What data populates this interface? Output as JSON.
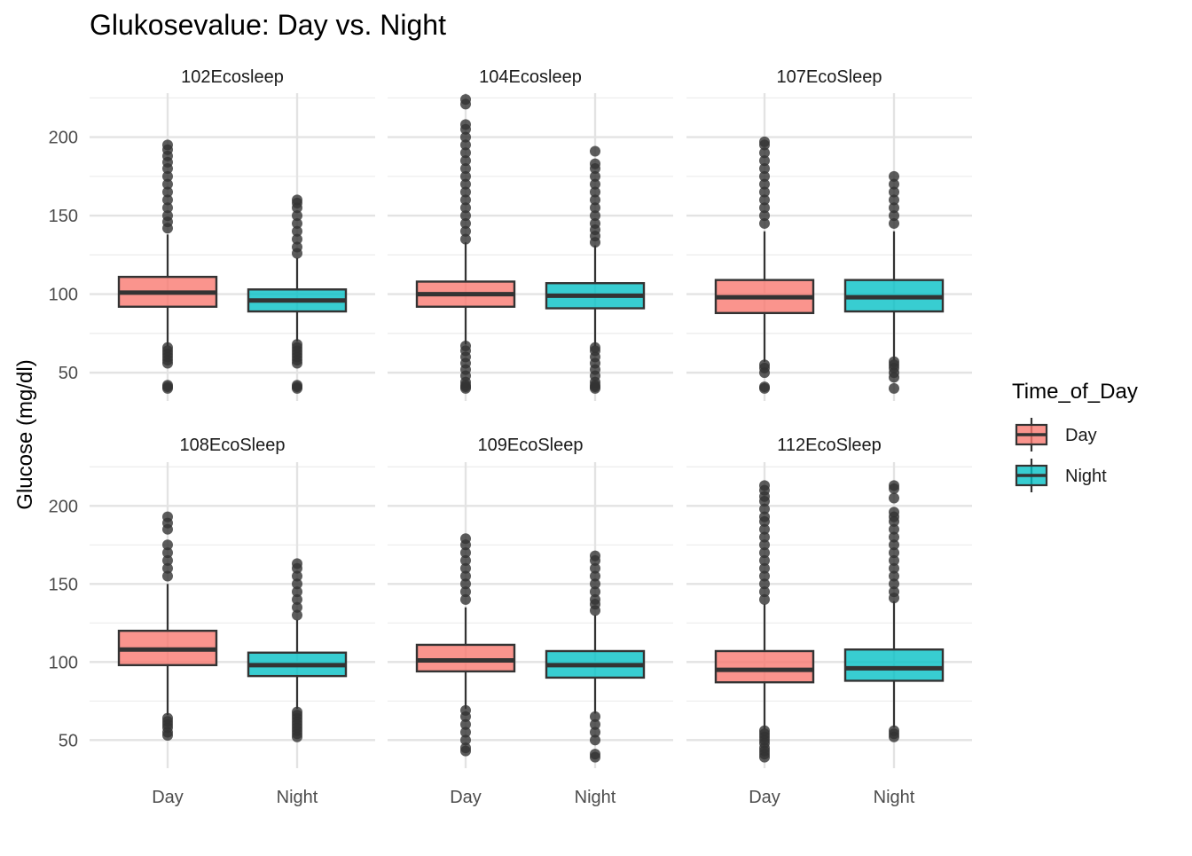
{
  "chart_data": {
    "type": "boxplot",
    "title": "Glukosevalue: Day vs. Night",
    "xlabel": "",
    "ylabel": "Glucose (mg/dl)",
    "ylim": [
      32,
      228
    ],
    "y_ticks": [
      50,
      100,
      150,
      200
    ],
    "categories": [
      "Day",
      "Night"
    ],
    "grid": true,
    "legend": {
      "title": "Time_of_Day",
      "position": "right",
      "entries": [
        {
          "label": "Day",
          "color": "#F8766D"
        },
        {
          "label": "Night",
          "color": "#00BFC4"
        }
      ]
    },
    "panels": [
      {
        "title": "102Ecosleep",
        "boxes": [
          {
            "category": "Day",
            "whisker_low": 67,
            "q1": 92,
            "median": 101,
            "q3": 111,
            "whisker_high": 138,
            "outliers": [
              40,
              41,
              42,
              56,
              58,
              60,
              62,
              64,
              66,
              142,
              146,
              150,
              155,
              160,
              165,
              170,
              175,
              180,
              184,
              188,
              192,
              195
            ]
          },
          {
            "category": "Night",
            "whisker_low": 70,
            "q1": 89,
            "median": 96,
            "q3": 103,
            "whisker_high": 123,
            "outliers": [
              40,
              41,
              42,
              56,
              58,
              60,
              62,
              64,
              66,
              68,
              126,
              130,
              135,
              140,
              145,
              150,
              155,
              158,
              160
            ]
          }
        ]
      },
      {
        "title": "104Ecosleep",
        "boxes": [
          {
            "category": "Day",
            "whisker_low": 68,
            "q1": 92,
            "median": 100,
            "q3": 108,
            "whisker_high": 133,
            "outliers": [
              40,
              41,
              42,
              44,
              48,
              52,
              56,
              60,
              64,
              67,
              135,
              140,
              145,
              150,
              155,
              160,
              165,
              170,
              175,
              180,
              185,
              190,
              195,
              200,
              205,
              208,
              221,
              224
            ]
          },
          {
            "category": "Night",
            "whisker_low": 67,
            "q1": 91,
            "median": 99,
            "q3": 107,
            "whisker_high": 131,
            "outliers": [
              40,
              41,
              42,
              44,
              48,
              52,
              56,
              60,
              64,
              66,
              133,
              137,
              141,
              145,
              150,
              155,
              160,
              165,
              170,
              175,
              180,
              183,
              191
            ]
          }
        ]
      },
      {
        "title": "107EcoSleep",
        "boxes": [
          {
            "category": "Day",
            "whisker_low": 57,
            "q1": 88,
            "median": 98,
            "q3": 109,
            "whisker_high": 140,
            "outliers": [
              40,
              41,
              50,
              53,
              55,
              145,
              150,
              155,
              160,
              165,
              170,
              175,
              180,
              185,
              190,
              195,
              197
            ]
          },
          {
            "category": "Night",
            "whisker_low": 58,
            "q1": 89,
            "median": 98,
            "q3": 109,
            "whisker_high": 140,
            "outliers": [
              40,
              47,
              50,
              53,
              55,
              57,
              145,
              150,
              155,
              160,
              165,
              170,
              175
            ]
          }
        ]
      },
      {
        "title": "108EcoSleep",
        "boxes": [
          {
            "category": "Day",
            "whisker_low": 66,
            "q1": 98,
            "median": 108,
            "q3": 120,
            "whisker_high": 150,
            "outliers": [
              53,
              55,
              58,
              60,
              62,
              64,
              155,
              160,
              165,
              170,
              175,
              185,
              189,
              193
            ]
          },
          {
            "category": "Night",
            "whisker_low": 70,
            "q1": 91,
            "median": 98,
            "q3": 106,
            "whisker_high": 127,
            "outliers": [
              52,
              54,
              56,
              58,
              60,
              62,
              64,
              66,
              68,
              130,
              135,
              140,
              145,
              150,
              155,
              160,
              163
            ]
          }
        ]
      },
      {
        "title": "109EcoSleep",
        "boxes": [
          {
            "category": "Day",
            "whisker_low": 70,
            "q1": 94,
            "median": 101,
            "q3": 111,
            "whisker_high": 135,
            "outliers": [
              43,
              45,
              50,
              55,
              60,
              65,
              69,
              140,
              145,
              150,
              155,
              160,
              165,
              170,
              175,
              179
            ]
          },
          {
            "category": "Night",
            "whisker_low": 67,
            "q1": 90,
            "median": 98,
            "q3": 107,
            "whisker_high": 130,
            "outliers": [
              39,
              41,
              50,
              55,
              60,
              65,
              133,
              137,
              140,
              145,
              150,
              155,
              160,
              165,
              168
            ]
          }
        ]
      },
      {
        "title": "112EcoSleep",
        "boxes": [
          {
            "category": "Day",
            "whisker_low": 57,
            "q1": 87,
            "median": 95,
            "q3": 107,
            "whisker_high": 137,
            "outliers": [
              39,
              41,
              43,
              45,
              48,
              50,
              52,
              54,
              56,
              140,
              145,
              150,
              155,
              160,
              165,
              170,
              175,
              180,
              185,
              190,
              193,
              198,
              203,
              206,
              210,
              213
            ]
          },
          {
            "category": "Night",
            "whisker_low": 58,
            "q1": 88,
            "median": 96,
            "q3": 108,
            "whisker_high": 139,
            "outliers": [
              52,
              54,
              56,
              141,
              145,
              150,
              155,
              160,
              165,
              170,
              175,
              180,
              185,
              190,
              193,
              196,
              205,
              211,
              213
            ]
          }
        ]
      }
    ]
  }
}
